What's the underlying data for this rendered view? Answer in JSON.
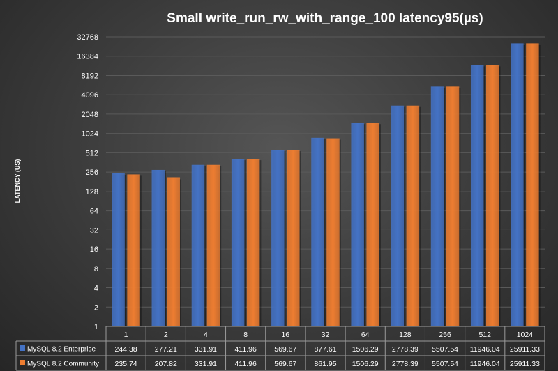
{
  "chart_data": {
    "type": "bar",
    "title": "Small  write_run_rw_with_range_100    latency95(µs)",
    "ylabel": "LATENCY (US)",
    "xlabel": "",
    "yscale": "log2",
    "ylim": [
      1,
      32768
    ],
    "yticks": [
      "1",
      "2",
      "4",
      "8",
      "16",
      "32",
      "64",
      "128",
      "256",
      "512",
      "1024",
      "2048",
      "4096",
      "8192",
      "16384",
      "32768"
    ],
    "categories": [
      "1",
      "2",
      "4",
      "8",
      "16",
      "32",
      "64",
      "128",
      "256",
      "512",
      "1024"
    ],
    "series": [
      {
        "name": "MySQL 8.2 Enterprise",
        "color": "#4472C4",
        "values": [
          244.38,
          277.21,
          331.91,
          411.96,
          569.67,
          877.61,
          1506.29,
          2778.39,
          5507.54,
          11946.04,
          25911.33
        ],
        "labels": [
          "244.38",
          "277.21",
          "331.91",
          "411.96",
          "569.67",
          "877.61",
          "1506.29",
          "2778.39",
          "5507.54",
          "11946.04",
          "25911.33"
        ]
      },
      {
        "name": "MySQL 8.2 Community",
        "color": "#ED7D31",
        "values": [
          235.74,
          207.82,
          331.91,
          411.96,
          569.67,
          861.95,
          1506.29,
          2778.39,
          5507.54,
          11946.04,
          25911.33
        ],
        "labels": [
          "235.74",
          "207.82",
          "331.91",
          "411.96",
          "569.67",
          "861.95",
          "1506.29",
          "2778.39",
          "5507.54",
          "11946.04",
          "25911.33"
        ]
      }
    ],
    "grid": true,
    "legend": "data-table"
  }
}
